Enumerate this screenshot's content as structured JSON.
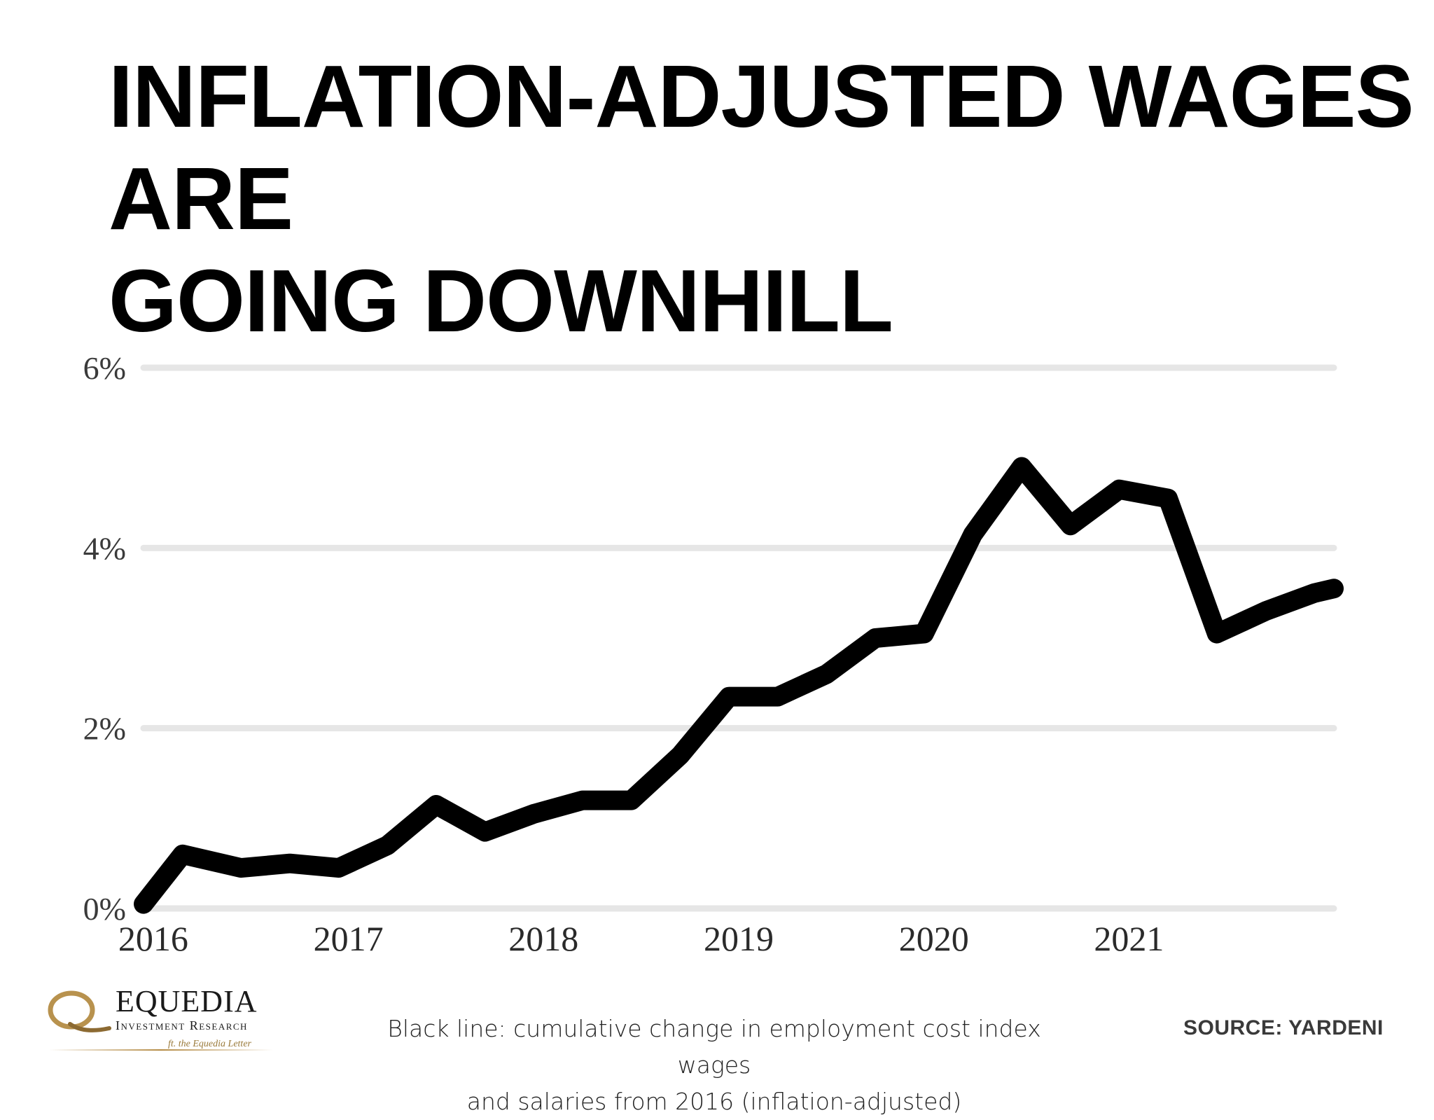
{
  "title_lines": [
    "INFLATION-ADJUSTED WAGES ARE",
    "GOING DOWNHILL"
  ],
  "chart_data": {
    "type": "line",
    "title": "INFLATION-ADJUSTED WAGES ARE GOING DOWNHILL",
    "xlabel": "",
    "ylabel": "",
    "x_ticks": [
      "2016",
      "2017",
      "2018",
      "2019",
      "2020",
      "2021"
    ],
    "y_ticks": [
      "0%",
      "2%",
      "4%",
      "6%"
    ],
    "ylim": [
      0,
      6
    ],
    "xlim": [
      2016.0,
      2022.1
    ],
    "grid": true,
    "series": [
      {
        "color": "#000000",
        "x": [
          2016.0,
          2016.2,
          2016.5,
          2016.75,
          2017.0,
          2017.25,
          2017.5,
          2017.75,
          2018.0,
          2018.25,
          2018.5,
          2018.75,
          2019.0,
          2019.25,
          2019.5,
          2019.75,
          2020.0,
          2020.25,
          2020.5,
          2020.75,
          2021.0,
          2021.25,
          2021.5,
          2021.75,
          2022.0,
          2022.1
        ],
        "y": [
          0.05,
          0.6,
          0.45,
          0.5,
          0.45,
          0.7,
          1.15,
          0.85,
          1.05,
          1.2,
          1.2,
          1.7,
          2.35,
          2.35,
          2.6,
          3.0,
          3.05,
          4.15,
          4.9,
          4.25,
          4.65,
          4.55,
          3.05,
          3.3,
          3.5,
          3.55
        ]
      }
    ]
  },
  "brand": {
    "name": "EQUEDIA",
    "subtitle": "Investment Research",
    "tagline": "ft. the Equedia Letter"
  },
  "caption_lines": [
    "Black line: cumulative change in employment cost index wages",
    "and salaries from 2016 (inflation-adjusted)"
  ],
  "source": "SOURCE:  YARDENI"
}
